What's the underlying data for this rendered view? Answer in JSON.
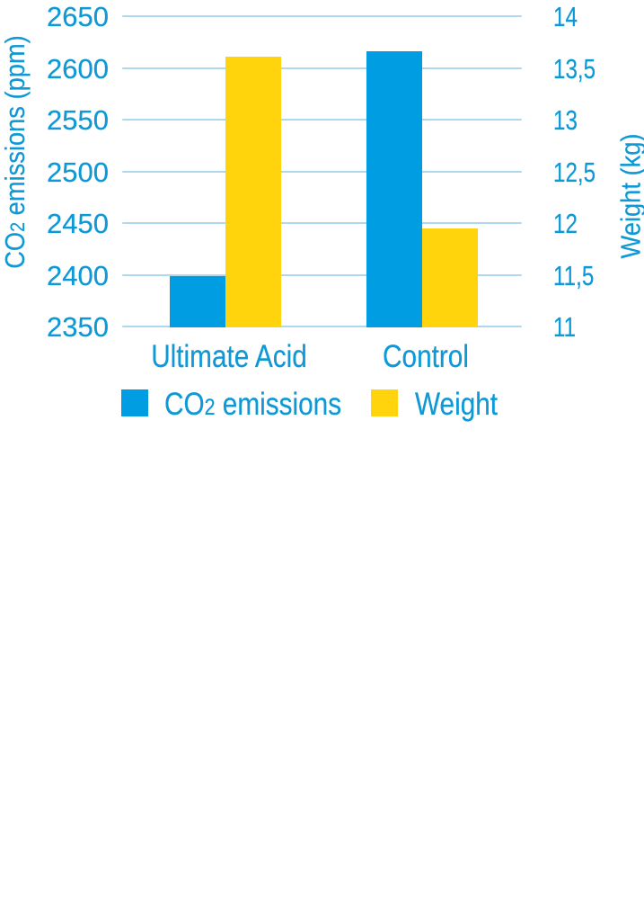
{
  "colors": {
    "co2_series": "#009de2",
    "weight_series": "#ffd40d",
    "gridline": "#aed7f0",
    "text": "#0e99d6"
  },
  "chart_data": {
    "type": "bar",
    "categories": [
      "Ultimate Acid",
      "Control"
    ],
    "series": [
      {
        "name": "CO2 emissions",
        "label_parts": {
          "pre": "CO",
          "sub": "2",
          "post": " emissions"
        },
        "axis": "left",
        "color_key": "co2_series",
        "values": [
          2399,
          2616
        ]
      },
      {
        "name": "Weight",
        "label_parts": {
          "pre": "Weight",
          "sub": "",
          "post": ""
        },
        "axis": "right",
        "color_key": "weight_series",
        "values": [
          13.61,
          11.95
        ]
      }
    ],
    "left_axis": {
      "title": "CO2 emissions (ppm)",
      "title_parts": {
        "pre": "CO",
        "sub": "2",
        "post": " emissions (ppm)"
      },
      "tick_labels": [
        "2650",
        "2600",
        "2550",
        "2500",
        "2450",
        "2400",
        "2350"
      ],
      "tick_values": [
        2650,
        2600,
        2550,
        2500,
        2450,
        2400,
        2350
      ],
      "min": 2350,
      "max": 2650
    },
    "right_axis": {
      "title": "Weight (kg)",
      "tick_labels": [
        "14",
        "13,5",
        "13",
        "12,5",
        "12",
        "11,5",
        "11"
      ],
      "tick_values": [
        14,
        13.5,
        13,
        12.5,
        12,
        11.5,
        11
      ],
      "min": 11,
      "max": 14
    },
    "legend": [
      {
        "label_parts": {
          "pre": "CO",
          "sub": "2",
          "post": " emissions"
        },
        "color_key": "co2_series"
      },
      {
        "label_parts": {
          "pre": "Weight",
          "sub": "",
          "post": ""
        },
        "color_key": "weight_series"
      }
    ],
    "grid": true,
    "legend_position": "bottom"
  }
}
